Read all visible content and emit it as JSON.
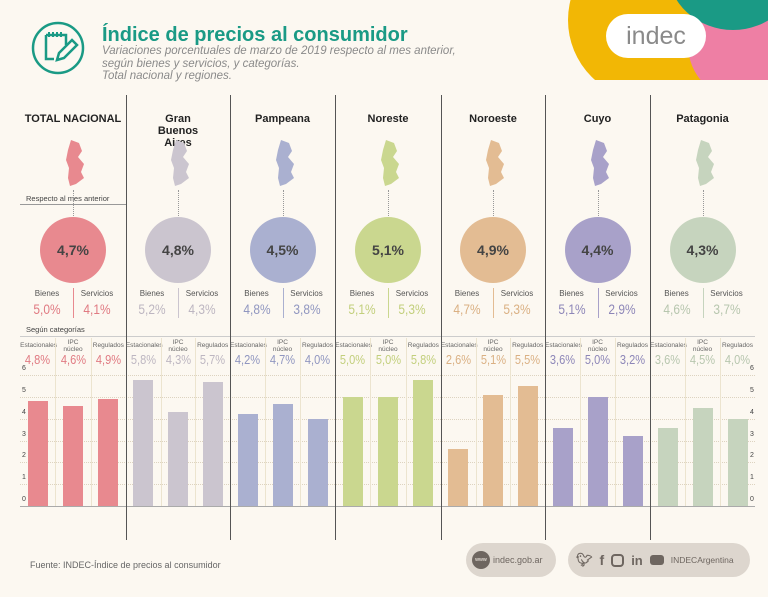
{
  "header": {
    "title": "Índice de precios al consumidor",
    "subtitle_lines": [
      "Variaciones porcentuales de marzo de 2019 respecto al mes anterior,",
      "según bienes y servicios, y categorías.",
      "Total nacional y regiones."
    ],
    "logo": "indec",
    "icon": "notepad-pencil-icon"
  },
  "sections": {
    "monthly": "Respecto al mes anterior",
    "categories": "Según categorías"
  },
  "labels": {
    "bienes": "Bienes",
    "servicios": "Servicios",
    "estacionales": "Estacionales",
    "ipc_nucleo_1": "IPC",
    "ipc_nucleo_2": "núcleo",
    "regulados": "Regulados"
  },
  "regions": [
    {
      "name": "TOTAL NACIONAL",
      "total": "4,7%",
      "bienes": "5,0%",
      "servicios": "4,1%",
      "estacionales": "4,8%",
      "nucleo": "4,6%",
      "regulados": "4,9%",
      "color": "#e8898f",
      "text_color": "#e07a82"
    },
    {
      "name": "Gran Buenos Aires",
      "total": "4,8%",
      "bienes": "5,2%",
      "servicios": "4,3%",
      "estacionales": "5,8%",
      "nucleo": "4,3%",
      "regulados": "5,7%",
      "color": "#cbc5cf",
      "text_color": "#bdb6c1"
    },
    {
      "name": "Pampeana",
      "total": "4,5%",
      "bienes": "4,8%",
      "servicios": "3,8%",
      "estacionales": "4,2%",
      "nucleo": "4,7%",
      "regulados": "4,0%",
      "color": "#aab0d0",
      "text_color": "#9096c0"
    },
    {
      "name": "Noreste",
      "total": "5,1%",
      "bienes": "5,1%",
      "servicios": "5,3%",
      "estacionales": "5,0%",
      "nucleo": "5,0%",
      "regulados": "5,8%",
      "color": "#cad78f",
      "text_color": "#c2cf7c"
    },
    {
      "name": "Noroeste",
      "total": "4,9%",
      "bienes": "4,7%",
      "servicios": "5,3%",
      "estacionales": "2,6%",
      "nucleo": "5,1%",
      "regulados": "5,5%",
      "color": "#e3bc93",
      "text_color": "#dab083"
    },
    {
      "name": "Cuyo",
      "total": "4,4%",
      "bienes": "5,1%",
      "servicios": "2,9%",
      "estacionales": "3,6%",
      "nucleo": "5,0%",
      "regulados": "3,2%",
      "color": "#a8a1c9",
      "text_color": "#8d86b8"
    },
    {
      "name": "Patagonia",
      "total": "4,3%",
      "bienes": "4,6%",
      "servicios": "3,7%",
      "estacionales": "3,6%",
      "nucleo": "4,5%",
      "regulados": "4,0%",
      "color": "#c6d4be",
      "text_color": "#b7c6ae"
    }
  ],
  "chart_data": {
    "type": "bar",
    "categories": [
      "Estacionales",
      "IPC núcleo",
      "Regulados"
    ],
    "ylim": [
      0,
      6
    ],
    "yticks": [
      "0",
      "1",
      "2",
      "3",
      "4",
      "5",
      "6"
    ],
    "grid": true,
    "groups": [
      {
        "name": "TOTAL NACIONAL",
        "values": [
          4.8,
          4.6,
          4.9
        ]
      },
      {
        "name": "Gran Buenos Aires",
        "values": [
          5.8,
          4.3,
          5.7
        ]
      },
      {
        "name": "Pampeana",
        "values": [
          4.2,
          4.7,
          4.0
        ]
      },
      {
        "name": "Noreste",
        "values": [
          5.0,
          5.0,
          5.8
        ]
      },
      {
        "name": "Noroeste",
        "values": [
          2.6,
          5.1,
          5.5
        ]
      },
      {
        "name": "Cuyo",
        "values": [
          3.6,
          5.0,
          3.2
        ]
      },
      {
        "name": "Patagonia",
        "values": [
          3.6,
          4.5,
          4.0
        ]
      }
    ]
  },
  "footer": {
    "source": "Fuente: INDEC-Índice de precios al consumidor",
    "website": "indec.gob.ar",
    "www": "www",
    "social_handle": "INDECArgentina",
    "brand_colors": {
      "teal": "#1a9a85",
      "yellow": "#f2b705",
      "pink": "#ee7fa4"
    }
  }
}
